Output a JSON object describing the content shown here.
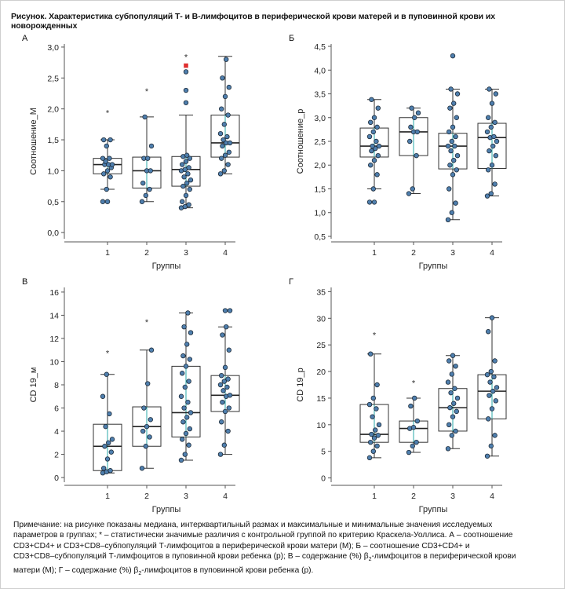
{
  "figure_title": "Рисунок. Характеристика субпопуляций Т- и В-лимфоцитов в периферической крови матерей и в пуповинной крови их новорожденных",
  "colors": {
    "box_stroke": "#333333",
    "whisker": "#2aa8a8",
    "median": "#222222",
    "point_fill": "#4f7fae",
    "point_stroke": "#1c2a38",
    "extreme_marker": "#e03030"
  },
  "chart_data": [
    {
      "id": "A",
      "panel_label": "А",
      "type": "box",
      "xlabel": "Группы",
      "ylabel": "Соотношение_М",
      "categories": [
        "1",
        "2",
        "3",
        "4"
      ],
      "ylim": [
        -0.1,
        3.05
      ],
      "yticks": [
        0.0,
        0.5,
        1.0,
        1.5,
        2.0,
        2.5,
        3.0
      ],
      "ytick_labels": [
        "0,0",
        "0,5",
        "1,0",
        "1,5",
        "2,0",
        "2,5",
        "3,0"
      ],
      "boxes": [
        {
          "group": "1",
          "min": 0.7,
          "q1": 0.95,
          "median": 1.1,
          "q3": 1.2,
          "max": 1.5,
          "outliers_star": [
            1.95
          ],
          "outliers_circle": [
            0.5
          ],
          "extremes": [],
          "points": [
            0.5,
            0.7,
            0.9,
            0.95,
            1.0,
            1.05,
            1.1,
            1.1,
            1.1,
            1.15,
            1.2,
            1.2,
            1.4,
            1.5,
            1.5
          ]
        },
        {
          "group": "2",
          "min": 0.5,
          "q1": 0.72,
          "median": 1.0,
          "q3": 1.22,
          "max": 1.87,
          "outliers_star": [
            2.3
          ],
          "outliers_circle": [],
          "extremes": [],
          "points": [
            0.5,
            0.6,
            0.7,
            0.8,
            1.0,
            1.0,
            1.2,
            1.2,
            1.4,
            1.87
          ]
        },
        {
          "group": "3",
          "min": 0.4,
          "q1": 0.75,
          "median": 1.02,
          "q3": 1.23,
          "max": 1.9,
          "outliers_star": [
            2.85
          ],
          "outliers_circle": [
            2.1,
            2.3,
            2.6
          ],
          "extremes": [
            2.7
          ],
          "points": [
            0.4,
            0.42,
            0.45,
            0.5,
            0.6,
            0.7,
            0.75,
            0.8,
            0.85,
            0.9,
            0.95,
            1.0,
            1.02,
            1.05,
            1.1,
            1.15,
            1.2,
            1.23,
            1.25
          ]
        },
        {
          "group": "4",
          "min": 0.95,
          "q1": 1.22,
          "median": 1.45,
          "q3": 1.9,
          "max": 2.85,
          "outliers_star": [],
          "outliers_circle": [],
          "extremes": [],
          "points": [
            0.95,
            1.0,
            1.1,
            1.2,
            1.25,
            1.3,
            1.4,
            1.45,
            1.45,
            1.5,
            1.55,
            1.6,
            1.75,
            1.9,
            2.0,
            2.2,
            2.35,
            2.5,
            2.8
          ]
        }
      ]
    },
    {
      "id": "B",
      "panel_label": "Б",
      "type": "box",
      "xlabel": "Группы",
      "ylabel": "Соотношение_р",
      "categories": [
        "1",
        "2",
        "3",
        "4"
      ],
      "ylim": [
        0.45,
        4.55
      ],
      "yticks": [
        0.5,
        1.0,
        1.5,
        2.0,
        2.5,
        3.0,
        3.5,
        4.0,
        4.5
      ],
      "ytick_labels": [
        "0,5",
        "1,0",
        "1,5",
        "2,0",
        "2,5",
        "3,0",
        "3,5",
        "4,0",
        "4,5"
      ],
      "boxes": [
        {
          "group": "1",
          "min": 1.5,
          "q1": 2.17,
          "median": 2.4,
          "q3": 2.78,
          "max": 3.38,
          "outliers_star": [],
          "outliers_circle": [
            1.22
          ],
          "extremes": [],
          "points": [
            1.22,
            1.5,
            1.8,
            2.0,
            2.1,
            2.2,
            2.3,
            2.35,
            2.4,
            2.4,
            2.5,
            2.6,
            2.7,
            2.8,
            2.9,
            3.0,
            3.2,
            3.38
          ]
        },
        {
          "group": "2",
          "min": 1.4,
          "q1": 2.2,
          "median": 2.7,
          "q3": 3.0,
          "max": 3.2,
          "outliers_star": [],
          "outliers_circle": [],
          "extremes": [],
          "points": [
            1.4,
            1.5,
            2.2,
            2.5,
            2.7,
            2.7,
            2.8,
            3.0,
            3.1,
            3.2
          ]
        },
        {
          "group": "3",
          "min": 0.85,
          "q1": 1.92,
          "median": 2.4,
          "q3": 2.67,
          "max": 3.6,
          "outliers_star": [],
          "outliers_circle": [
            4.3
          ],
          "extremes": [],
          "points": [
            0.85,
            1.0,
            1.2,
            1.5,
            1.8,
            1.9,
            2.0,
            2.1,
            2.2,
            2.3,
            2.4,
            2.4,
            2.5,
            2.6,
            2.7,
            2.8,
            3.0,
            3.2,
            3.3,
            3.5,
            3.6
          ]
        },
        {
          "group": "4",
          "min": 1.35,
          "q1": 1.93,
          "median": 2.58,
          "q3": 2.88,
          "max": 3.6,
          "outliers_star": [],
          "outliers_circle": [],
          "extremes": [],
          "points": [
            1.35,
            1.4,
            1.6,
            1.9,
            2.0,
            2.2,
            2.3,
            2.4,
            2.5,
            2.58,
            2.6,
            2.7,
            2.8,
            2.9,
            3.0,
            3.3,
            3.5,
            3.6
          ]
        }
      ]
    },
    {
      "id": "C",
      "panel_label": "В",
      "type": "box",
      "xlabel": "Группы",
      "ylabel": "CD 19_м",
      "categories": [
        "1",
        "2",
        "3",
        "4"
      ],
      "ylim": [
        -0.4,
        16.4
      ],
      "yticks": [
        0,
        2,
        4,
        6,
        8,
        10,
        12,
        14,
        16
      ],
      "ytick_labels": [
        "0",
        "2",
        "4",
        "6",
        "8",
        "10",
        "12",
        "14",
        "16"
      ],
      "boxes": [
        {
          "group": "1",
          "min": 0.4,
          "q1": 0.6,
          "median": 2.7,
          "q3": 4.6,
          "max": 8.9,
          "outliers_star": [
            10.8
          ],
          "outliers_circle": [],
          "extremes": [],
          "points": [
            0.4,
            0.5,
            0.6,
            0.8,
            1.6,
            2.2,
            2.7,
            3.0,
            3.3,
            4.4,
            5.5,
            7.0,
            8.9
          ]
        },
        {
          "group": "2",
          "min": 0.8,
          "q1": 2.7,
          "median": 4.4,
          "q3": 6.1,
          "max": 11.0,
          "outliers_star": [
            13.5
          ],
          "outliers_circle": [],
          "extremes": [],
          "points": [
            0.8,
            2.7,
            3.5,
            4.0,
            4.4,
            5.0,
            6.0,
            8.1,
            11.0
          ]
        },
        {
          "group": "3",
          "min": 1.5,
          "q1": 3.5,
          "median": 5.6,
          "q3": 9.6,
          "max": 14.2,
          "outliers_star": [],
          "outliers_circle": [],
          "extremes": [],
          "points": [
            1.5,
            2.0,
            2.8,
            3.3,
            3.8,
            4.2,
            4.8,
            5.2,
            5.6,
            6.0,
            6.5,
            7.0,
            7.8,
            8.3,
            9.0,
            9.6,
            10.2,
            10.5,
            11.5,
            12.5,
            13.0,
            14.2
          ]
        },
        {
          "group": "4",
          "min": 2.0,
          "q1": 5.7,
          "median": 7.1,
          "q3": 8.8,
          "max": 13.0,
          "outliers_star": [],
          "outliers_circle": [
            14.4
          ],
          "extremes": [],
          "points": [
            2.0,
            2.8,
            4.0,
            4.8,
            5.7,
            6.0,
            6.5,
            7.0,
            7.1,
            7.5,
            7.8,
            8.0,
            8.3,
            8.5,
            8.8,
            9.5,
            11.0,
            12.3,
            13.0,
            14.4
          ]
        }
      ]
    },
    {
      "id": "D",
      "panel_label": "Г",
      "type": "box",
      "xlabel": "Группы",
      "ylabel": "CD 19_р",
      "categories": [
        "1",
        "2",
        "3",
        "4"
      ],
      "ylim": [
        -0.8,
        35.8
      ],
      "yticks": [
        0,
        5,
        10,
        15,
        20,
        25,
        30,
        35
      ],
      "ytick_labels": [
        "0",
        "5",
        "10",
        "15",
        "20",
        "25",
        "30",
        "35"
      ],
      "boxes": [
        {
          "group": "1",
          "min": 3.8,
          "q1": 6.7,
          "median": 8.2,
          "q3": 13.8,
          "max": 23.3,
          "outliers_star": [
            27.0
          ],
          "outliers_circle": [],
          "extremes": [],
          "points": [
            3.8,
            5.0,
            6.0,
            6.7,
            7.5,
            8.0,
            8.2,
            9.0,
            10.0,
            11.5,
            13.0,
            13.8,
            15.0,
            17.5,
            23.3
          ]
        },
        {
          "group": "2",
          "min": 4.8,
          "q1": 6.7,
          "median": 9.3,
          "q3": 10.7,
          "max": 15.0,
          "outliers_star": [
            18.0
          ],
          "outliers_circle": [],
          "extremes": [],
          "points": [
            4.8,
            6.0,
            6.7,
            9.3,
            9.5,
            10.7,
            13.5,
            15.0
          ]
        },
        {
          "group": "3",
          "min": 5.5,
          "q1": 8.8,
          "median": 13.2,
          "q3": 16.8,
          "max": 23.0,
          "outliers_star": [],
          "outliers_circle": [],
          "extremes": [],
          "points": [
            5.5,
            8.0,
            8.8,
            10.0,
            11.5,
            12.5,
            13.2,
            14.0,
            15.0,
            16.0,
            16.8,
            18.0,
            19.5,
            21.0,
            22.0,
            23.0
          ]
        },
        {
          "group": "4",
          "min": 4.1,
          "q1": 11.1,
          "median": 16.3,
          "q3": 19.4,
          "max": 30.1,
          "outliers_star": [],
          "outliers_circle": [],
          "extremes": [],
          "points": [
            4.1,
            6.0,
            8.0,
            11.1,
            13.0,
            14.5,
            15.5,
            16.3,
            17.0,
            18.0,
            19.0,
            19.4,
            20.0,
            22.0,
            27.5,
            30.1
          ]
        }
      ]
    }
  ],
  "note": {
    "line1": "Примечание: на рисунке показаны медиана, интерквартильный размах и максимальные и минимальные значения исследуемых",
    "line2": "параметров в группах; * – статистически значимые различия с контрольной группой по критерию Краскела-Уоллиса. А – соотношение",
    "line3": "CD3+CD4+ и CD3+CD8–субпопуляций Т-лимфоцитов в периферической крови матери (М); Б – соотношение CD3+CD4+ и",
    "line4a": "CD3+CD8–субпопуляций Т-лимфоцитов в пуповинной крови ребенка (р); В – содержание (%)  β",
    "line4sub": "2",
    "line4b": "-лимфоцитов в периферической крови",
    "line5a": "матери (М); Г – содержание (%) β",
    "line5sub": "2",
    "line5b": "-лимфоцитов в пуповинной крови ребенка (р)."
  }
}
